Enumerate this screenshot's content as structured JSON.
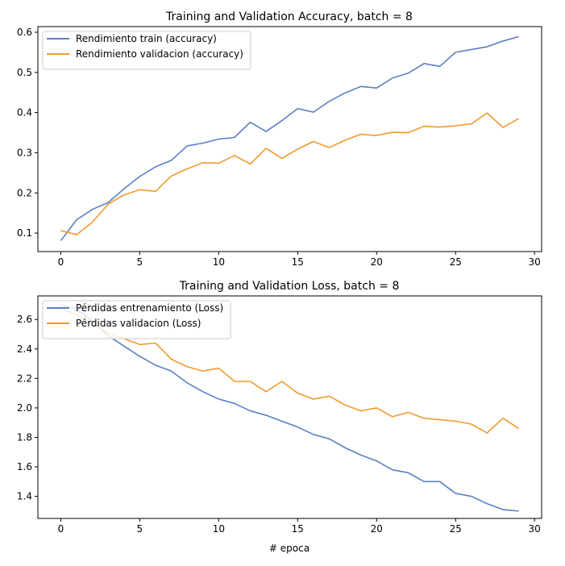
{
  "chart_data": [
    {
      "type": "line",
      "title": "Training and Validation Accuracy, batch = 8",
      "xlabel": "",
      "ylabel": "",
      "xlim": [
        -1.45,
        30.45
      ],
      "ylim": [
        0.054,
        0.614
      ],
      "xticks": [
        0,
        5,
        10,
        15,
        20,
        25,
        30
      ],
      "yticks": [
        0.1,
        0.2,
        0.3,
        0.4,
        0.5,
        0.6
      ],
      "ytick_decimals": 1,
      "legend": "upper-left",
      "x": [
        0,
        1,
        2,
        3,
        4,
        5,
        6,
        7,
        8,
        9,
        10,
        11,
        12,
        13,
        14,
        15,
        16,
        17,
        18,
        19,
        20,
        21,
        22,
        23,
        24,
        25,
        26,
        27,
        28,
        29
      ],
      "series": [
        {
          "name": "Rendimiento train (accuracy)",
          "color": "#5b7fc5",
          "values": [
            0.081,
            0.133,
            0.159,
            0.176,
            0.21,
            0.241,
            0.265,
            0.281,
            0.317,
            0.324,
            0.334,
            0.338,
            0.376,
            0.353,
            0.38,
            0.41,
            0.401,
            0.428,
            0.449,
            0.465,
            0.461,
            0.486,
            0.498,
            0.522,
            0.515,
            0.55,
            0.557,
            0.564,
            0.578,
            0.589
          ]
        },
        {
          "name": "Rendimiento validacion (accuracy)",
          "color": "#f19a2d",
          "values": [
            0.106,
            0.096,
            0.127,
            0.172,
            0.195,
            0.208,
            0.204,
            0.242,
            0.26,
            0.275,
            0.274,
            0.293,
            0.272,
            0.311,
            0.286,
            0.309,
            0.328,
            0.313,
            0.331,
            0.346,
            0.343,
            0.351,
            0.35,
            0.366,
            0.364,
            0.367,
            0.372,
            0.399,
            0.363,
            0.385
          ]
        }
      ]
    },
    {
      "type": "line",
      "title": "Training and Validation Loss, batch = 8",
      "xlabel": "# epoca",
      "ylabel": "",
      "xlim": [
        -1.45,
        30.45
      ],
      "ylim": [
        1.25,
        2.76
      ],
      "xticks": [
        0,
        5,
        10,
        15,
        20,
        25,
        30
      ],
      "yticks": [
        1.4,
        1.6,
        1.8,
        2.0,
        2.2,
        2.4,
        2.6
      ],
      "ytick_decimals": 1,
      "legend": "upper-left",
      "x": [
        0,
        1,
        2,
        3,
        4,
        5,
        6,
        7,
        8,
        9,
        10,
        11,
        12,
        13,
        14,
        15,
        16,
        17,
        18,
        19,
        20,
        21,
        22,
        23,
        24,
        25,
        26,
        27,
        28,
        29
      ],
      "series": [
        {
          "name": "Pérdidas entrenamiento (Loss)",
          "color": "#5b7fc5",
          "values": [
            2.7,
            2.67,
            2.59,
            2.49,
            2.42,
            2.35,
            2.29,
            2.25,
            2.17,
            2.11,
            2.06,
            2.03,
            1.98,
            1.95,
            1.91,
            1.87,
            1.82,
            1.79,
            1.73,
            1.68,
            1.64,
            1.58,
            1.56,
            1.5,
            1.5,
            1.42,
            1.4,
            1.35,
            1.31,
            1.3
          ]
        },
        {
          "name": "Pérdidas validacion (Loss)",
          "color": "#f19a2d",
          "values": [
            2.68,
            2.63,
            2.57,
            2.51,
            2.47,
            2.43,
            2.44,
            2.33,
            2.28,
            2.25,
            2.27,
            2.18,
            2.18,
            2.11,
            2.18,
            2.1,
            2.06,
            2.08,
            2.02,
            1.98,
            2.0,
            1.94,
            1.97,
            1.93,
            1.92,
            1.91,
            1.89,
            1.83,
            1.93,
            1.86
          ]
        }
      ]
    }
  ]
}
